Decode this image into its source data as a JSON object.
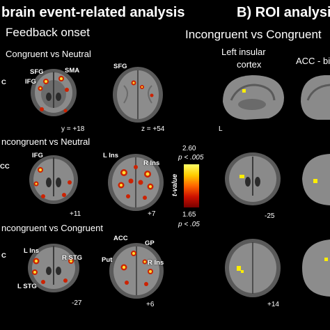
{
  "panel_a": {
    "title": "brain event-related analysis",
    "subtitle": "Feedback onset",
    "rows": [
      {
        "condition": "Congruent vs Neutral",
        "coord_left": "y = +18",
        "coord_right": "z = +54",
        "labels_left": [
          "SFG",
          "SMA",
          "IFG"
        ],
        "labels_right": [
          "SFG"
        ],
        "edge_label": "C"
      },
      {
        "condition": "ncongruent vs Neutral",
        "coord_left": "+11",
        "coord_right": "+7",
        "labels_left": [
          "IFG"
        ],
        "labels_right": [
          "L Ins",
          "R Ins"
        ],
        "edge_label": "CC"
      },
      {
        "condition": "ncongruent vs Congruent",
        "coord_left": "-27",
        "coord_right": "+6",
        "labels_left": [
          "L Ins",
          "R STG",
          "L STG"
        ],
        "labels_right": [
          "ACC",
          "GP",
          "Put",
          "R Ins"
        ],
        "edge_label": "C"
      }
    ]
  },
  "panel_b": {
    "title": "B) ROI analysis",
    "subtitle": "Incongruent vs Congruent",
    "col1": "Left insular cortex",
    "col1_line1": "Left insular",
    "col1_line2": "cortex",
    "col2": "ACC - bi",
    "orient_L": "L",
    "coords": [
      "-25",
      "+14"
    ]
  },
  "colorbar": {
    "top": "2.60",
    "top_p": "p < .005",
    "bottom": "1.65",
    "bottom_p": "p < .05",
    "label": "t-value",
    "gradient": [
      "#ffff66",
      "#ffcc00",
      "#ff6600",
      "#cc1100",
      "#7a0000"
    ]
  },
  "colors": {
    "background": "#000000",
    "activation_hot": "#ffdd33",
    "activation_red": "#cc2200",
    "roi_yellow": "#ffee00"
  }
}
